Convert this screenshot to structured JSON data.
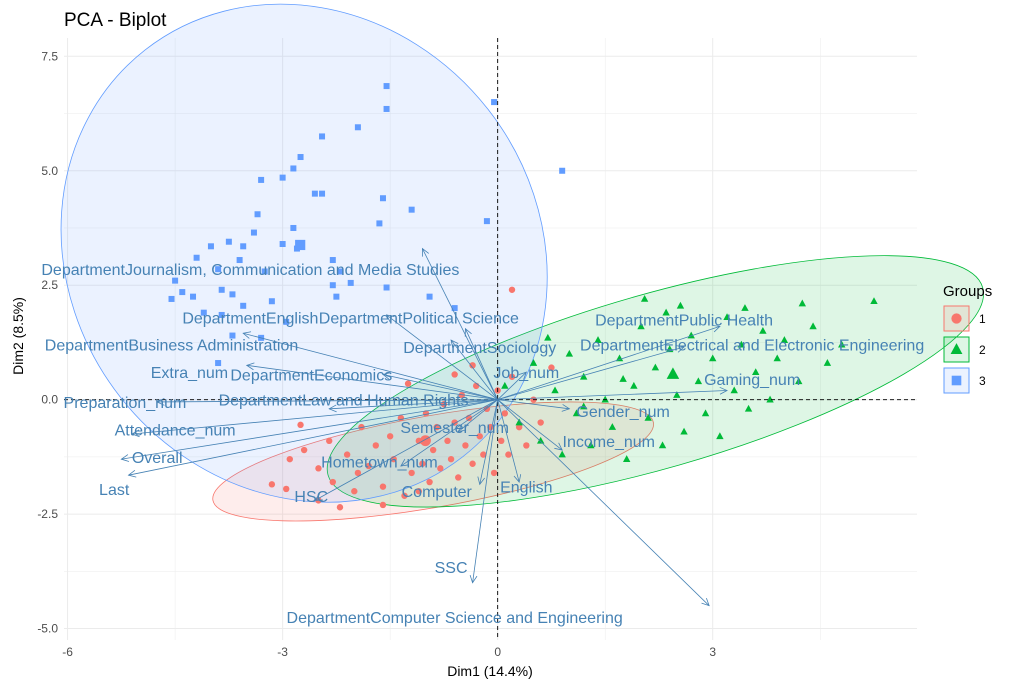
{
  "chart_data": {
    "type": "scatter",
    "title": "PCA - Biplot",
    "xlabel": "Dim1 (14.4%)",
    "ylabel": "Dim2 (8.5%)",
    "xlim": [
      -6.05,
      5.85
    ],
    "ylim": [
      -5.25,
      7.9
    ],
    "xticks": [
      -6,
      -3,
      0,
      3
    ],
    "yticks": [
      -5.0,
      -2.5,
      0.0,
      2.5,
      5.0,
      7.5
    ],
    "xtick_labels": [
      "-6",
      "-3",
      "0",
      "3"
    ],
    "ytick_labels": [
      "-5.0",
      "-2.5",
      "0.0",
      "2.5",
      "5.0",
      "7.5"
    ],
    "grid": true,
    "reference_lines": {
      "x": 0,
      "y": 0,
      "style": "dashed"
    },
    "legend": {
      "title": "Groups",
      "position": "right",
      "entries": [
        {
          "label": "1",
          "shape": "circle",
          "color": "#F8766D"
        },
        {
          "label": "2",
          "shape": "triangle",
          "color": "#00BA38"
        },
        {
          "label": "3",
          "shape": "square",
          "color": "#619CFF"
        }
      ]
    },
    "ellipses": [
      {
        "group": "1",
        "cx": -0.9,
        "cy": -1.35,
        "rx": 3.12,
        "ry": 1.0,
        "angle": 10,
        "fill": "#F8766D",
        "stroke": "#F8766D"
      },
      {
        "group": "2",
        "cx": 2.2,
        "cy": 0.4,
        "rx": 4.75,
        "ry": 1.9,
        "angle": 16,
        "fill": "#00BA38",
        "stroke": "#00BA38"
      },
      {
        "group": "3",
        "cx": -2.7,
        "cy": 3.2,
        "rx": 3.6,
        "ry": 5.1,
        "angle": -52,
        "fill": "#619CFF",
        "stroke": "#619CFF"
      }
    ],
    "arrow_color": "#4682b4",
    "variables": [
      {
        "name": "DepartmentJournalism, Communication and Media Studies",
        "x": -1.05,
        "y": 3.3,
        "lx": -3.45,
        "ly": 2.85
      },
      {
        "name": "DepartmentEnglish",
        "x": -1.55,
        "y": 1.85,
        "lx": -3.45,
        "ly": 1.8
      },
      {
        "name": "DepartmentPolitical Science",
        "x": -0.45,
        "y": 1.55,
        "lx": -1.1,
        "ly": 1.8
      },
      {
        "name": "DepartmentPublic Health",
        "x": 3.1,
        "y": 1.6,
        "lx": 2.6,
        "ly": 1.75
      },
      {
        "name": "DepartmentBusiness Administration",
        "x": -3.55,
        "y": 1.45,
        "lx": -4.55,
        "ly": 1.2
      },
      {
        "name": "DepartmentSociology",
        "x": -0.65,
        "y": 1.3,
        "lx": -0.25,
        "ly": 1.15
      },
      {
        "name": "DepartmentElectrical and Electronic Engineering",
        "x": 2.6,
        "y": 1.15,
        "lx": 3.55,
        "ly": 1.2
      },
      {
        "name": "Extra_num",
        "x": -3.5,
        "y": 0.75,
        "lx": -4.3,
        "ly": 0.6
      },
      {
        "name": "DepartmentEconomics",
        "x": -1.6,
        "y": 0.55,
        "lx": -2.6,
        "ly": 0.55
      },
      {
        "name": "Job_num",
        "x": 0.4,
        "y": 0.6,
        "lx": 0.4,
        "ly": 0.6
      },
      {
        "name": "Gaming_num",
        "x": 3.2,
        "y": 0.2,
        "lx": 3.55,
        "ly": 0.45
      },
      {
        "name": "Preparation_num",
        "x": -4.75,
        "y": -0.05,
        "lx": -5.2,
        "ly": -0.05
      },
      {
        "name": "DepartmentLaw and Human Rights",
        "x": -2.35,
        "y": -0.2,
        "lx": -2.15,
        "ly": 0.0
      },
      {
        "name": "Gender_num",
        "x": 1.0,
        "y": -0.2,
        "lx": 1.75,
        "ly": -0.25
      },
      {
        "name": "Attendance_num",
        "x": -5.1,
        "y": -0.75,
        "lx": -4.5,
        "ly": -0.65
      },
      {
        "name": "Semester_num",
        "x": -0.55,
        "y": -0.7,
        "lx": -0.6,
        "ly": -0.6
      },
      {
        "name": "Income_num",
        "x": 0.9,
        "y": -1.1,
        "lx": 1.55,
        "ly": -0.9
      },
      {
        "name": "Overall",
        "x": -5.25,
        "y": -1.3,
        "lx": -4.75,
        "ly": -1.25
      },
      {
        "name": "Hometown_num",
        "x": -1.35,
        "y": -1.45,
        "lx": -1.65,
        "ly": -1.35
      },
      {
        "name": "Last",
        "x": -5.15,
        "y": -1.65,
        "lx": -5.35,
        "ly": -1.95
      },
      {
        "name": "Computer",
        "x": -0.25,
        "y": -1.85,
        "lx": -0.85,
        "ly": -2.0
      },
      {
        "name": "English",
        "x": 0.3,
        "y": -1.8,
        "lx": 0.4,
        "ly": -1.9
      },
      {
        "name": "HSC",
        "x": -2.55,
        "y": -2.2,
        "lx": -2.6,
        "ly": -2.1
      },
      {
        "name": "SSC",
        "x": -0.35,
        "y": -4.0,
        "lx": -0.65,
        "ly": -3.65
      },
      {
        "name": "DepartmentComputer Science and Engineering",
        "x": 2.95,
        "y": -4.5,
        "lx": -0.6,
        "ly": -4.75
      }
    ],
    "groups": [
      {
        "name": "1",
        "points": [
          [
            -3.15,
            -1.85
          ],
          [
            -2.95,
            -1.95
          ],
          [
            -2.9,
            -1.3
          ],
          [
            -2.7,
            -1.1
          ],
          [
            -2.5,
            -1.5
          ],
          [
            -2.35,
            -0.9
          ],
          [
            -2.3,
            -1.8
          ],
          [
            -2.1,
            -1.2
          ],
          [
            -2.0,
            -2.0
          ],
          [
            -1.9,
            -0.6
          ],
          [
            -1.8,
            -1.45
          ],
          [
            -1.7,
            -1.0
          ],
          [
            -1.6,
            -1.9
          ],
          [
            -1.5,
            -0.8
          ],
          [
            -1.45,
            -1.3
          ],
          [
            -1.35,
            -0.4
          ],
          [
            -1.3,
            -2.1
          ],
          [
            -1.2,
            -1.6
          ],
          [
            -1.1,
            -0.9
          ],
          [
            -1.05,
            -1.4
          ],
          [
            -1.0,
            -0.3
          ],
          [
            -0.95,
            -1.8
          ],
          [
            -0.9,
            -1.1
          ],
          [
            -0.85,
            -0.6
          ],
          [
            -0.8,
            -1.5
          ],
          [
            -0.75,
            -0.1
          ],
          [
            -0.7,
            -0.9
          ],
          [
            -0.65,
            -1.3
          ],
          [
            -0.6,
            -0.5
          ],
          [
            -0.55,
            -1.7
          ],
          [
            -0.5,
            0.1
          ],
          [
            -0.45,
            -1.0
          ],
          [
            -0.4,
            -0.4
          ],
          [
            -0.35,
            -1.4
          ],
          [
            -0.3,
            0.3
          ],
          [
            -0.25,
            -0.8
          ],
          [
            -0.2,
            -1.2
          ],
          [
            -0.15,
            -0.2
          ],
          [
            -0.1,
            -0.6
          ],
          [
            -0.05,
            -1.6
          ],
          [
            0.0,
            0.2
          ],
          [
            0.05,
            -0.9
          ],
          [
            0.1,
            -0.3
          ],
          [
            0.15,
            -1.2
          ],
          [
            0.2,
            0.5
          ],
          [
            0.3,
            -0.6
          ],
          [
            0.4,
            -1.0
          ],
          [
            0.5,
            0.0
          ],
          [
            0.6,
            -0.5
          ],
          [
            0.75,
            0.7
          ],
          [
            0.2,
            2.4
          ],
          [
            -2.2,
            -2.35
          ],
          [
            -1.6,
            -2.3
          ],
          [
            -2.75,
            -0.55
          ],
          [
            -1.25,
            0.35
          ],
          [
            -0.6,
            0.55
          ],
          [
            -0.35,
            0.75
          ],
          [
            -1.95,
            -1.6
          ],
          [
            -2.5,
            -2.2
          ],
          [
            -1.1,
            -2.0
          ]
        ]
      },
      {
        "name": "2",
        "points": [
          [
            0.1,
            0.3
          ],
          [
            0.3,
            -0.5
          ],
          [
            0.5,
            0.8
          ],
          [
            0.6,
            -0.9
          ],
          [
            0.8,
            0.2
          ],
          [
            0.9,
            -1.2
          ],
          [
            1.0,
            1.0
          ],
          [
            1.1,
            -0.3
          ],
          [
            1.2,
            0.5
          ],
          [
            1.3,
            -1.0
          ],
          [
            1.4,
            1.3
          ],
          [
            1.5,
            0.0
          ],
          [
            1.6,
            -0.6
          ],
          [
            1.7,
            0.9
          ],
          [
            1.8,
            -1.3
          ],
          [
            1.9,
            0.3
          ],
          [
            2.0,
            1.6
          ],
          [
            2.1,
            -0.4
          ],
          [
            2.2,
            0.7
          ],
          [
            2.3,
            -1.0
          ],
          [
            2.4,
            1.1
          ],
          [
            2.5,
            0.1
          ],
          [
            2.6,
            -0.7
          ],
          [
            2.7,
            1.4
          ],
          [
            2.8,
            0.4
          ],
          [
            2.9,
            -0.3
          ],
          [
            3.0,
            0.9
          ],
          [
            3.1,
            -0.8
          ],
          [
            3.2,
            1.8
          ],
          [
            3.3,
            0.2
          ],
          [
            3.4,
            1.2
          ],
          [
            3.5,
            -0.2
          ],
          [
            3.6,
            0.6
          ],
          [
            3.7,
            1.5
          ],
          [
            3.8,
            0.0
          ],
          [
            3.9,
            0.9
          ],
          [
            4.0,
            1.3
          ],
          [
            4.2,
            0.4
          ],
          [
            4.4,
            1.6
          ],
          [
            4.6,
            0.8
          ],
          [
            4.8,
            1.2
          ],
          [
            5.25,
            2.15
          ],
          [
            2.05,
            2.2
          ],
          [
            2.55,
            2.05
          ],
          [
            3.45,
            2.0
          ],
          [
            4.25,
            2.1
          ],
          [
            1.2,
            -0.15
          ],
          [
            1.75,
            0.45
          ],
          [
            2.35,
            1.9
          ],
          [
            0.7,
            1.35
          ]
        ]
      },
      {
        "name": "3",
        "points": [
          [
            -0.05,
            6.5
          ],
          [
            -1.55,
            6.85
          ],
          [
            -1.55,
            6.35
          ],
          [
            -1.95,
            5.95
          ],
          [
            -2.45,
            5.75
          ],
          [
            -2.75,
            5.3
          ],
          [
            -2.85,
            5.05
          ],
          [
            -3.0,
            4.85
          ],
          [
            -3.3,
            4.8
          ],
          [
            -2.55,
            4.5
          ],
          [
            -2.45,
            4.5
          ],
          [
            -1.6,
            4.4
          ],
          [
            -1.2,
            4.15
          ],
          [
            0.9,
            5.0
          ],
          [
            -1.65,
            3.85
          ],
          [
            -0.15,
            3.9
          ],
          [
            -3.35,
            4.05
          ],
          [
            -2.85,
            3.75
          ],
          [
            -3.0,
            3.4
          ],
          [
            -3.4,
            3.65
          ],
          [
            -3.75,
            3.45
          ],
          [
            -4.0,
            3.35
          ],
          [
            -3.55,
            3.35
          ],
          [
            -3.6,
            3.05
          ],
          [
            -2.8,
            3.3
          ],
          [
            -4.2,
            3.1
          ],
          [
            -2.3,
            3.05
          ],
          [
            -2.2,
            2.8
          ],
          [
            -3.25,
            2.8
          ],
          [
            -3.9,
            2.85
          ],
          [
            -4.5,
            2.6
          ],
          [
            -4.4,
            2.35
          ],
          [
            -4.25,
            2.25
          ],
          [
            -3.85,
            2.4
          ],
          [
            -3.7,
            2.3
          ],
          [
            -2.3,
            2.5
          ],
          [
            -2.25,
            2.25
          ],
          [
            -2.05,
            2.55
          ],
          [
            -1.55,
            2.45
          ],
          [
            -0.95,
            2.25
          ],
          [
            -0.6,
            2.0
          ],
          [
            -3.15,
            2.15
          ],
          [
            -2.95,
            1.7
          ],
          [
            -3.55,
            2.05
          ],
          [
            -3.85,
            1.85
          ],
          [
            -4.1,
            1.9
          ],
          [
            -4.55,
            2.2
          ],
          [
            -3.7,
            1.4
          ],
          [
            -3.3,
            1.35
          ],
          [
            -3.9,
            0.8
          ]
        ]
      }
    ]
  }
}
